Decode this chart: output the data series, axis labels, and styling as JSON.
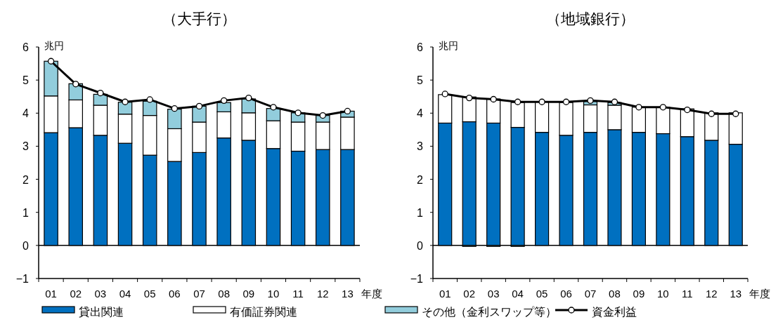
{
  "chart_data": [
    {
      "type": "bar",
      "title": "（大手行）",
      "ylabel": "兆円",
      "xlabel": "年度",
      "stacked": true,
      "legend": "bottom",
      "marker": "circle",
      "categories": [
        "01",
        "02",
        "03",
        "04",
        "05",
        "06",
        "07",
        "08",
        "09",
        "10",
        "11",
        "12",
        "13"
      ],
      "ylim": [
        -1,
        6
      ],
      "yticks": [
        {
          "value": -1,
          "label": "−1"
        },
        0,
        1,
        2,
        3,
        4,
        5,
        6
      ],
      "series": [
        {
          "name": "貸出関連",
          "color": "#0070c0",
          "values": [
            3.41,
            3.56,
            3.33,
            3.09,
            2.73,
            2.54,
            2.81,
            3.25,
            3.18,
            2.93,
            2.85,
            2.9,
            2.9
          ]
        },
        {
          "name": "有価証券関連",
          "color": "#ffffff",
          "values": [
            1.11,
            0.84,
            0.91,
            0.88,
            1.2,
            0.99,
            0.92,
            0.79,
            0.83,
            0.84,
            0.88,
            0.83,
            0.98
          ]
        },
        {
          "name": "その他（金利スワップ等）",
          "color": "#92cddc",
          "values": [
            1.05,
            0.49,
            0.33,
            0.36,
            0.43,
            0.59,
            0.48,
            0.28,
            0.42,
            0.37,
            0.28,
            0.2,
            0.18
          ]
        },
        {
          "name": "資金利益",
          "type": "line",
          "color": "#000000",
          "values": [
            5.57,
            4.88,
            4.61,
            4.34,
            4.41,
            4.14,
            4.21,
            4.38,
            4.46,
            4.18,
            4.01,
            3.93,
            4.06
          ]
        }
      ]
    },
    {
      "type": "bar",
      "title": "（地域銀行）",
      "ylabel": "兆円",
      "xlabel": "年度",
      "stacked": true,
      "marker": "circle",
      "categories": [
        "01",
        "02",
        "03",
        "04",
        "05",
        "06",
        "07",
        "08",
        "09",
        "10",
        "11",
        "12",
        "13"
      ],
      "ylim": [
        -1,
        6
      ],
      "yticks": [
        {
          "value": -1,
          "label": "−1"
        },
        0,
        1,
        2,
        3,
        4,
        5,
        6
      ],
      "series": [
        {
          "color": "#0070c0",
          "values": [
            3.7,
            3.74,
            3.7,
            3.57,
            3.42,
            3.33,
            3.42,
            3.5,
            3.42,
            3.38,
            3.29,
            3.18,
            3.06
          ]
        },
        {
          "color": "#ffffff",
          "values": [
            0.86,
            0.75,
            0.73,
            0.75,
            0.92,
            0.99,
            0.83,
            0.74,
            0.76,
            0.8,
            0.84,
            0.83,
            0.95
          ]
        },
        {
          "color": "#92cddc",
          "values": [
            0,
            -0.03,
            -0.03,
            -0.03,
            0,
            0,
            0.1,
            0.08,
            0,
            0,
            0,
            0,
            0
          ]
        },
        {
          "type": "line",
          "color": "#000000",
          "values": [
            4.58,
            4.46,
            4.42,
            4.34,
            4.34,
            4.34,
            4.38,
            4.34,
            4.18,
            4.18,
            4.1,
            3.98,
            3.98
          ]
        }
      ]
    }
  ]
}
